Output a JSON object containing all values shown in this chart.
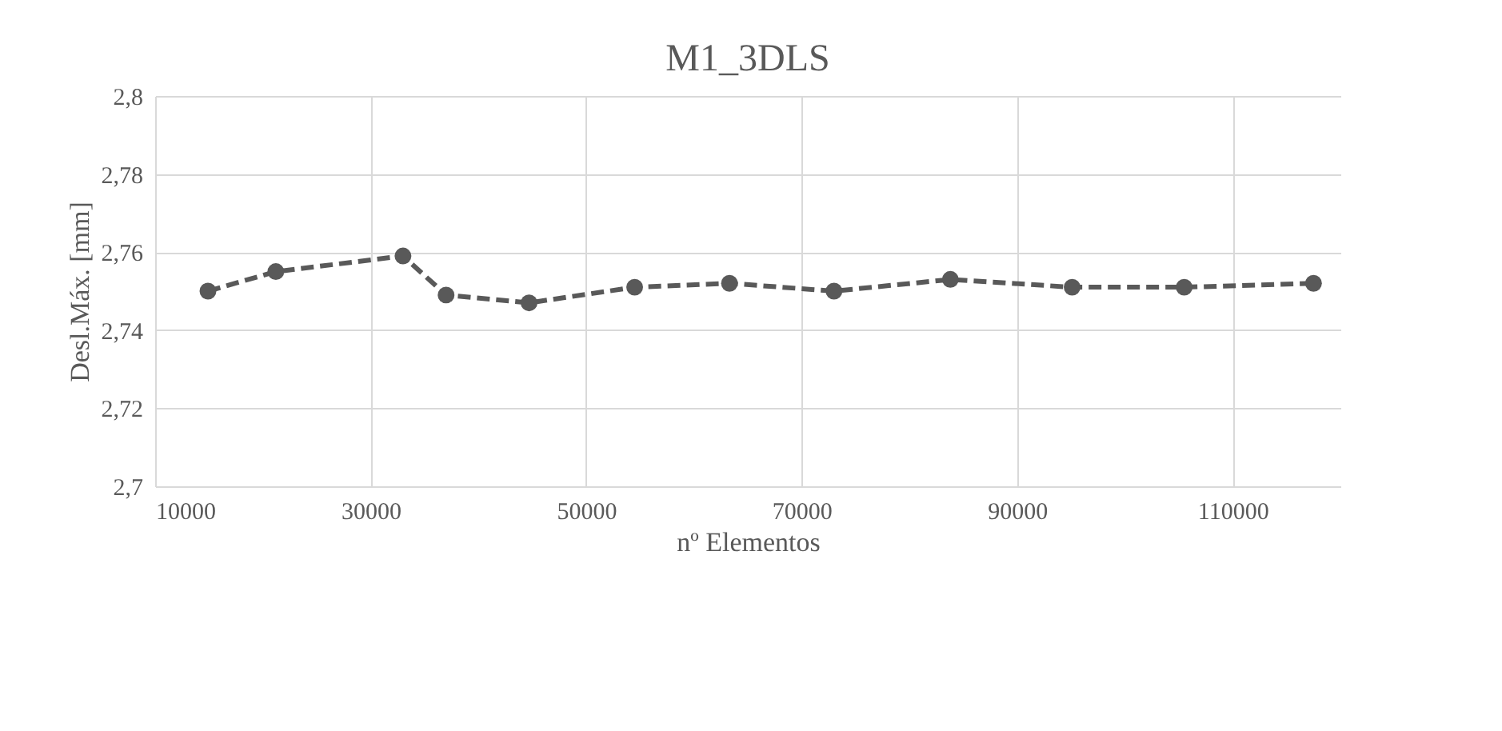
{
  "chart_data": {
    "type": "line",
    "title": "M1_3DLS",
    "xlabel": "nº Elementos",
    "ylabel": "Desl.Máx. [mm]",
    "x": [
      14900,
      21200,
      33000,
      37000,
      44700,
      54500,
      63300,
      73000,
      83800,
      95100,
      105500,
      117500
    ],
    "series": [
      {
        "color": "#595959",
        "values": [
          2.75,
          2.755,
          2.759,
          2.749,
          2.747,
          2.751,
          2.752,
          2.75,
          2.753,
          2.751,
          2.751,
          2.752
        ]
      }
    ],
    "xlim": [
      10000,
      120000
    ],
    "xticks": [
      10000,
      30000,
      50000,
      70000,
      90000,
      110000
    ],
    "ylim": [
      2.7,
      2.8
    ],
    "yticks": [
      {
        "value": 2.7,
        "label": "2,7"
      },
      {
        "value": 2.72,
        "label": "2,72"
      },
      {
        "value": 2.74,
        "label": "2,74"
      },
      {
        "value": 2.76,
        "label": "2,76"
      },
      {
        "value": 2.78,
        "label": "2,78"
      },
      {
        "value": 2.8,
        "label": "2,8"
      }
    ],
    "grid": true,
    "marker": "circle",
    "line_style": "dashed"
  }
}
